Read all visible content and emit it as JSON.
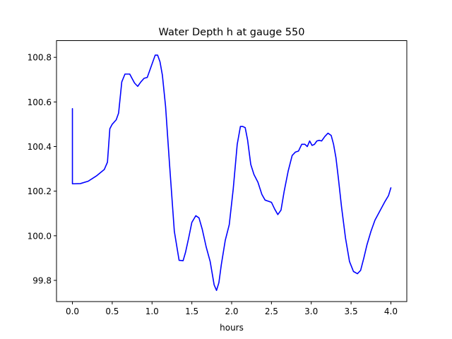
{
  "chart_data": {
    "type": "line",
    "title": "Water Depth h at gauge 550",
    "xlabel": "hours",
    "ylabel": "",
    "xlim": [
      -0.2,
      4.2
    ],
    "ylim": [
      99.705,
      100.875
    ],
    "xticks": [
      0.0,
      0.5,
      1.0,
      1.5,
      2.0,
      2.5,
      3.0,
      3.5,
      4.0
    ],
    "xtick_labels": [
      "0.0",
      "0.5",
      "1.0",
      "1.5",
      "2.0",
      "2.5",
      "3.0",
      "3.5",
      "4.0"
    ],
    "yticks": [
      99.8,
      100.0,
      100.2,
      100.4,
      100.6,
      100.8
    ],
    "ytick_labels": [
      "99.8",
      "100.0",
      "100.2",
      "100.4",
      "100.6",
      "100.8"
    ],
    "grid": false,
    "line_color": "#0000ff",
    "series": [
      {
        "x": [
          0.0,
          0.0,
          0.01,
          0.1,
          0.2,
          0.3,
          0.4,
          0.44,
          0.47,
          0.5,
          0.55,
          0.58,
          0.62,
          0.66,
          0.72,
          0.75,
          0.78,
          0.82,
          0.86,
          0.9,
          0.94,
          0.97,
          1.0,
          1.04,
          1.07,
          1.1,
          1.13,
          1.17,
          1.22,
          1.28,
          1.34,
          1.39,
          1.42,
          1.46,
          1.5,
          1.55,
          1.59,
          1.63,
          1.68,
          1.73,
          1.78,
          1.81,
          1.84,
          1.87,
          1.92,
          1.97,
          2.02,
          2.07,
          2.11,
          2.14,
          2.17,
          2.2,
          2.24,
          2.28,
          2.33,
          2.38,
          2.42,
          2.46,
          2.5,
          2.54,
          2.58,
          2.62,
          2.66,
          2.71,
          2.76,
          2.8,
          2.84,
          2.88,
          2.92,
          2.95,
          2.98,
          3.01,
          3.04,
          3.07,
          3.1,
          3.13,
          3.17,
          3.21,
          3.25,
          3.28,
          3.31,
          3.34,
          3.38,
          3.43,
          3.48,
          3.53,
          3.58,
          3.62,
          3.66,
          3.7,
          3.75,
          3.8,
          3.86,
          3.92,
          3.97,
          4.0
        ],
        "y": [
          100.57,
          100.233,
          100.233,
          100.234,
          100.245,
          100.268,
          100.297,
          100.33,
          100.48,
          100.5,
          100.52,
          100.55,
          100.69,
          100.725,
          100.725,
          100.705,
          100.685,
          100.67,
          100.69,
          100.706,
          100.71,
          100.74,
          100.77,
          100.81,
          100.81,
          100.78,
          100.72,
          100.58,
          100.32,
          100.02,
          99.89,
          99.888,
          99.925,
          99.99,
          100.06,
          100.09,
          100.08,
          100.03,
          99.95,
          99.885,
          99.78,
          99.755,
          99.79,
          99.87,
          99.98,
          100.05,
          100.21,
          100.41,
          100.49,
          100.49,
          100.485,
          100.43,
          100.32,
          100.275,
          100.24,
          100.185,
          100.16,
          100.155,
          100.15,
          100.12,
          100.095,
          100.115,
          100.2,
          100.29,
          100.36,
          100.375,
          100.38,
          100.41,
          100.41,
          100.4,
          100.425,
          100.405,
          100.41,
          100.425,
          100.428,
          100.425,
          100.445,
          100.46,
          100.45,
          100.41,
          100.35,
          100.26,
          100.13,
          99.99,
          99.885,
          99.84,
          99.83,
          99.845,
          99.9,
          99.96,
          100.02,
          100.07,
          100.11,
          100.15,
          100.18,
          100.215
        ]
      }
    ]
  }
}
